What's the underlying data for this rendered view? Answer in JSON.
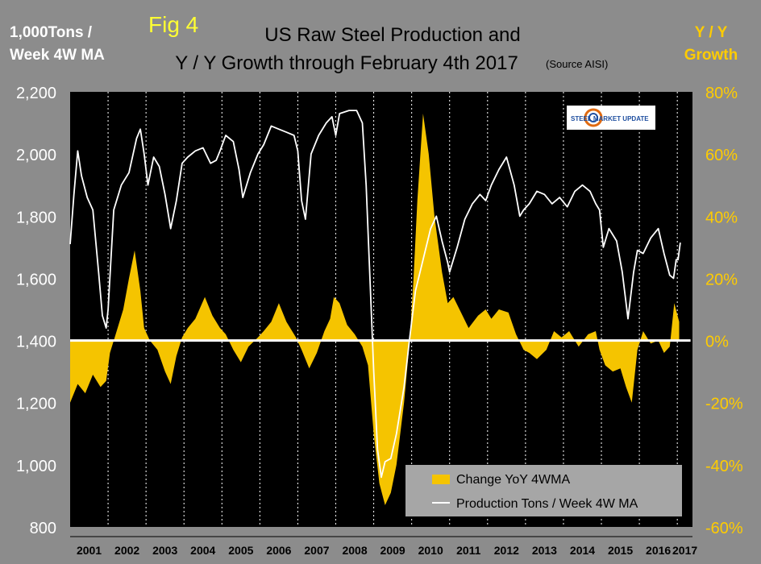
{
  "figure": {
    "fig_label": "Fig 4",
    "title_line1": "US Raw Steel Production and",
    "title_line2": "Y / Y Growth through February 4th 2017",
    "source_note": "(Source AISI)",
    "left_axis_line1": "1,000Tons /",
    "left_axis_line2": "Week 4W MA",
    "right_axis_line1": "Y / Y",
    "right_axis_line2": "Growth",
    "logo_text": "STEEL MARKET UPDATE"
  },
  "colors": {
    "background": "#8c8c8c",
    "plot": "#000000",
    "area": "#f5c400",
    "line": "#ffffff",
    "fig_label": "#ffff33",
    "right_axis": "#ffcc00"
  },
  "chart_data": {
    "type": "line",
    "title": "US Raw Steel Production and Y / Y Growth through February 4th 2017",
    "x_categories": [
      "2001",
      "2002",
      "2003",
      "2004",
      "2005",
      "2006",
      "2007",
      "2008",
      "2009",
      "2010",
      "2011",
      "2012",
      "2013",
      "2014",
      "2015",
      "2016",
      "2017"
    ],
    "y_left": {
      "label": "1,000Tons / Week 4W MA",
      "range": [
        800,
        2200
      ],
      "ticks": [
        "800",
        "1,000",
        "1,200",
        "1,400",
        "1,600",
        "1,800",
        "2,000",
        "2,200"
      ]
    },
    "y_right": {
      "label": "Y / Y Growth",
      "range": [
        -60,
        80
      ],
      "ticks": [
        "-60%",
        "-40%",
        "-20%",
        "0%",
        "20%",
        "40%",
        "60%",
        "80%"
      ]
    },
    "legend": {
      "placement": "bottom-right",
      "entries": [
        "Change YoY 4WMA",
        "Production Tons / Week 4W MA"
      ]
    },
    "series": [
      {
        "name": "Production Tons / Week 4W MA",
        "axis": "left",
        "render": "line",
        "points": [
          [
            2001.0,
            1710
          ],
          [
            2001.1,
            1870
          ],
          [
            2001.2,
            2010
          ],
          [
            2001.3,
            1930
          ],
          [
            2001.45,
            1860
          ],
          [
            2001.6,
            1820
          ],
          [
            2001.75,
            1620
          ],
          [
            2001.85,
            1480
          ],
          [
            2001.95,
            1440
          ],
          [
            2002.0,
            1500
          ],
          [
            2002.15,
            1820
          ],
          [
            2002.35,
            1900
          ],
          [
            2002.55,
            1940
          ],
          [
            2002.75,
            2050
          ],
          [
            2002.85,
            2080
          ],
          [
            2002.95,
            2000
          ],
          [
            2003.05,
            1900
          ],
          [
            2003.2,
            1990
          ],
          [
            2003.35,
            1960
          ],
          [
            2003.5,
            1870
          ],
          [
            2003.65,
            1760
          ],
          [
            2003.8,
            1850
          ],
          [
            2003.95,
            1970
          ],
          [
            2004.1,
            1990
          ],
          [
            2004.3,
            2010
          ],
          [
            2004.5,
            2020
          ],
          [
            2004.7,
            1970
          ],
          [
            2004.85,
            1980
          ],
          [
            2004.95,
            2010
          ],
          [
            2005.1,
            2060
          ],
          [
            2005.3,
            2040
          ],
          [
            2005.45,
            1950
          ],
          [
            2005.55,
            1860
          ],
          [
            2005.75,
            1940
          ],
          [
            2005.95,
            2000
          ],
          [
            2006.1,
            2030
          ],
          [
            2006.3,
            2090
          ],
          [
            2006.5,
            2080
          ],
          [
            2006.7,
            2070
          ],
          [
            2006.9,
            2060
          ],
          [
            2007.0,
            2010
          ],
          [
            2007.1,
            1850
          ],
          [
            2007.2,
            1790
          ],
          [
            2007.35,
            2000
          ],
          [
            2007.55,
            2060
          ],
          [
            2007.75,
            2100
          ],
          [
            2007.9,
            2120
          ],
          [
            2008.0,
            2060
          ],
          [
            2008.1,
            2130
          ],
          [
            2008.35,
            2140
          ],
          [
            2008.55,
            2140
          ],
          [
            2008.7,
            2100
          ],
          [
            2008.8,
            1900
          ],
          [
            2008.9,
            1600
          ],
          [
            2009.0,
            1300
          ],
          [
            2009.1,
            1050
          ],
          [
            2009.2,
            960
          ],
          [
            2009.3,
            1010
          ],
          [
            2009.45,
            1020
          ],
          [
            2009.6,
            1100
          ],
          [
            2009.8,
            1250
          ],
          [
            2009.95,
            1410
          ],
          [
            2010.1,
            1560
          ],
          [
            2010.3,
            1660
          ],
          [
            2010.5,
            1760
          ],
          [
            2010.65,
            1800
          ],
          [
            2010.8,
            1720
          ],
          [
            2010.95,
            1650
          ],
          [
            2011.0,
            1620
          ],
          [
            2011.2,
            1700
          ],
          [
            2011.4,
            1790
          ],
          [
            2011.6,
            1840
          ],
          [
            2011.8,
            1870
          ],
          [
            2011.95,
            1850
          ],
          [
            2012.1,
            1900
          ],
          [
            2012.3,
            1950
          ],
          [
            2012.5,
            1990
          ],
          [
            2012.7,
            1900
          ],
          [
            2012.85,
            1800
          ],
          [
            2012.95,
            1820
          ],
          [
            2013.1,
            1840
          ],
          [
            2013.3,
            1880
          ],
          [
            2013.5,
            1870
          ],
          [
            2013.7,
            1840
          ],
          [
            2013.9,
            1860
          ],
          [
            2014.1,
            1830
          ],
          [
            2014.3,
            1880
          ],
          [
            2014.5,
            1900
          ],
          [
            2014.7,
            1880
          ],
          [
            2014.85,
            1840
          ],
          [
            2014.95,
            1820
          ],
          [
            2015.05,
            1700
          ],
          [
            2015.2,
            1760
          ],
          [
            2015.4,
            1720
          ],
          [
            2015.55,
            1620
          ],
          [
            2015.7,
            1470
          ],
          [
            2015.85,
            1620
          ],
          [
            2015.95,
            1690
          ],
          [
            2016.1,
            1680
          ],
          [
            2016.3,
            1730
          ],
          [
            2016.5,
            1760
          ],
          [
            2016.65,
            1680
          ],
          [
            2016.8,
            1610
          ],
          [
            2016.9,
            1600
          ],
          [
            2016.97,
            1660
          ],
          [
            2017.02,
            1660
          ],
          [
            2017.08,
            1715
          ]
        ]
      },
      {
        "name": "Change YoY 4WMA",
        "axis": "right",
        "render": "area",
        "points": [
          [
            2001.0,
            -20
          ],
          [
            2001.2,
            -14
          ],
          [
            2001.4,
            -17
          ],
          [
            2001.6,
            -11
          ],
          [
            2001.8,
            -15
          ],
          [
            2001.95,
            -13
          ],
          [
            2002.05,
            -4
          ],
          [
            2002.2,
            2
          ],
          [
            2002.4,
            10
          ],
          [
            2002.55,
            20
          ],
          [
            2002.7,
            29
          ],
          [
            2002.85,
            16
          ],
          [
            2002.95,
            4
          ],
          [
            2003.1,
            0
          ],
          [
            2003.3,
            -3
          ],
          [
            2003.5,
            -10
          ],
          [
            2003.65,
            -14
          ],
          [
            2003.8,
            -5
          ],
          [
            2003.95,
            1
          ],
          [
            2004.1,
            4
          ],
          [
            2004.3,
            7
          ],
          [
            2004.55,
            14
          ],
          [
            2004.75,
            8
          ],
          [
            2004.95,
            4
          ],
          [
            2005.1,
            2
          ],
          [
            2005.3,
            -3
          ],
          [
            2005.5,
            -7
          ],
          [
            2005.7,
            -2
          ],
          [
            2005.95,
            1
          ],
          [
            2006.1,
            3
          ],
          [
            2006.3,
            6
          ],
          [
            2006.5,
            12
          ],
          [
            2006.7,
            6
          ],
          [
            2006.95,
            1
          ],
          [
            2007.1,
            -3
          ],
          [
            2007.3,
            -9
          ],
          [
            2007.5,
            -4
          ],
          [
            2007.7,
            3
          ],
          [
            2007.85,
            7
          ],
          [
            2007.95,
            14
          ],
          [
            2008.1,
            12
          ],
          [
            2008.3,
            5
          ],
          [
            2008.5,
            2
          ],
          [
            2008.7,
            -2
          ],
          [
            2008.85,
            -8
          ],
          [
            2009.0,
            -30
          ],
          [
            2009.15,
            -46
          ],
          [
            2009.3,
            -53
          ],
          [
            2009.45,
            -49
          ],
          [
            2009.6,
            -40
          ],
          [
            2009.8,
            -20
          ],
          [
            2009.95,
            0
          ],
          [
            2010.05,
            20
          ],
          [
            2010.15,
            45
          ],
          [
            2010.3,
            73
          ],
          [
            2010.45,
            60
          ],
          [
            2010.6,
            40
          ],
          [
            2010.8,
            22
          ],
          [
            2010.95,
            12
          ],
          [
            2011.1,
            14
          ],
          [
            2011.3,
            9
          ],
          [
            2011.5,
            4
          ],
          [
            2011.75,
            8
          ],
          [
            2011.95,
            10
          ],
          [
            2012.1,
            7
          ],
          [
            2012.3,
            10
          ],
          [
            2012.55,
            9
          ],
          [
            2012.75,
            2
          ],
          [
            2012.95,
            -3
          ],
          [
            2013.1,
            -4
          ],
          [
            2013.3,
            -6
          ],
          [
            2013.55,
            -3
          ],
          [
            2013.75,
            3
          ],
          [
            2013.95,
            1
          ],
          [
            2014.15,
            3
          ],
          [
            2014.4,
            -2
          ],
          [
            2014.65,
            2
          ],
          [
            2014.85,
            3
          ],
          [
            2014.95,
            -3
          ],
          [
            2015.1,
            -8
          ],
          [
            2015.3,
            -10
          ],
          [
            2015.5,
            -9
          ],
          [
            2015.65,
            -15
          ],
          [
            2015.8,
            -20
          ],
          [
            2015.95,
            -3
          ],
          [
            2016.1,
            3
          ],
          [
            2016.3,
            -1
          ],
          [
            2016.5,
            0
          ],
          [
            2016.65,
            -4
          ],
          [
            2016.8,
            -2
          ],
          [
            2016.92,
            12
          ],
          [
            2017.05,
            6
          ]
        ]
      },
      {
        "name": "",
        "axis": "right",
        "render": "line",
        "points": [
          [
            2001.0,
            0
          ],
          [
            2017.35,
            0
          ]
        ]
      }
    ]
  }
}
